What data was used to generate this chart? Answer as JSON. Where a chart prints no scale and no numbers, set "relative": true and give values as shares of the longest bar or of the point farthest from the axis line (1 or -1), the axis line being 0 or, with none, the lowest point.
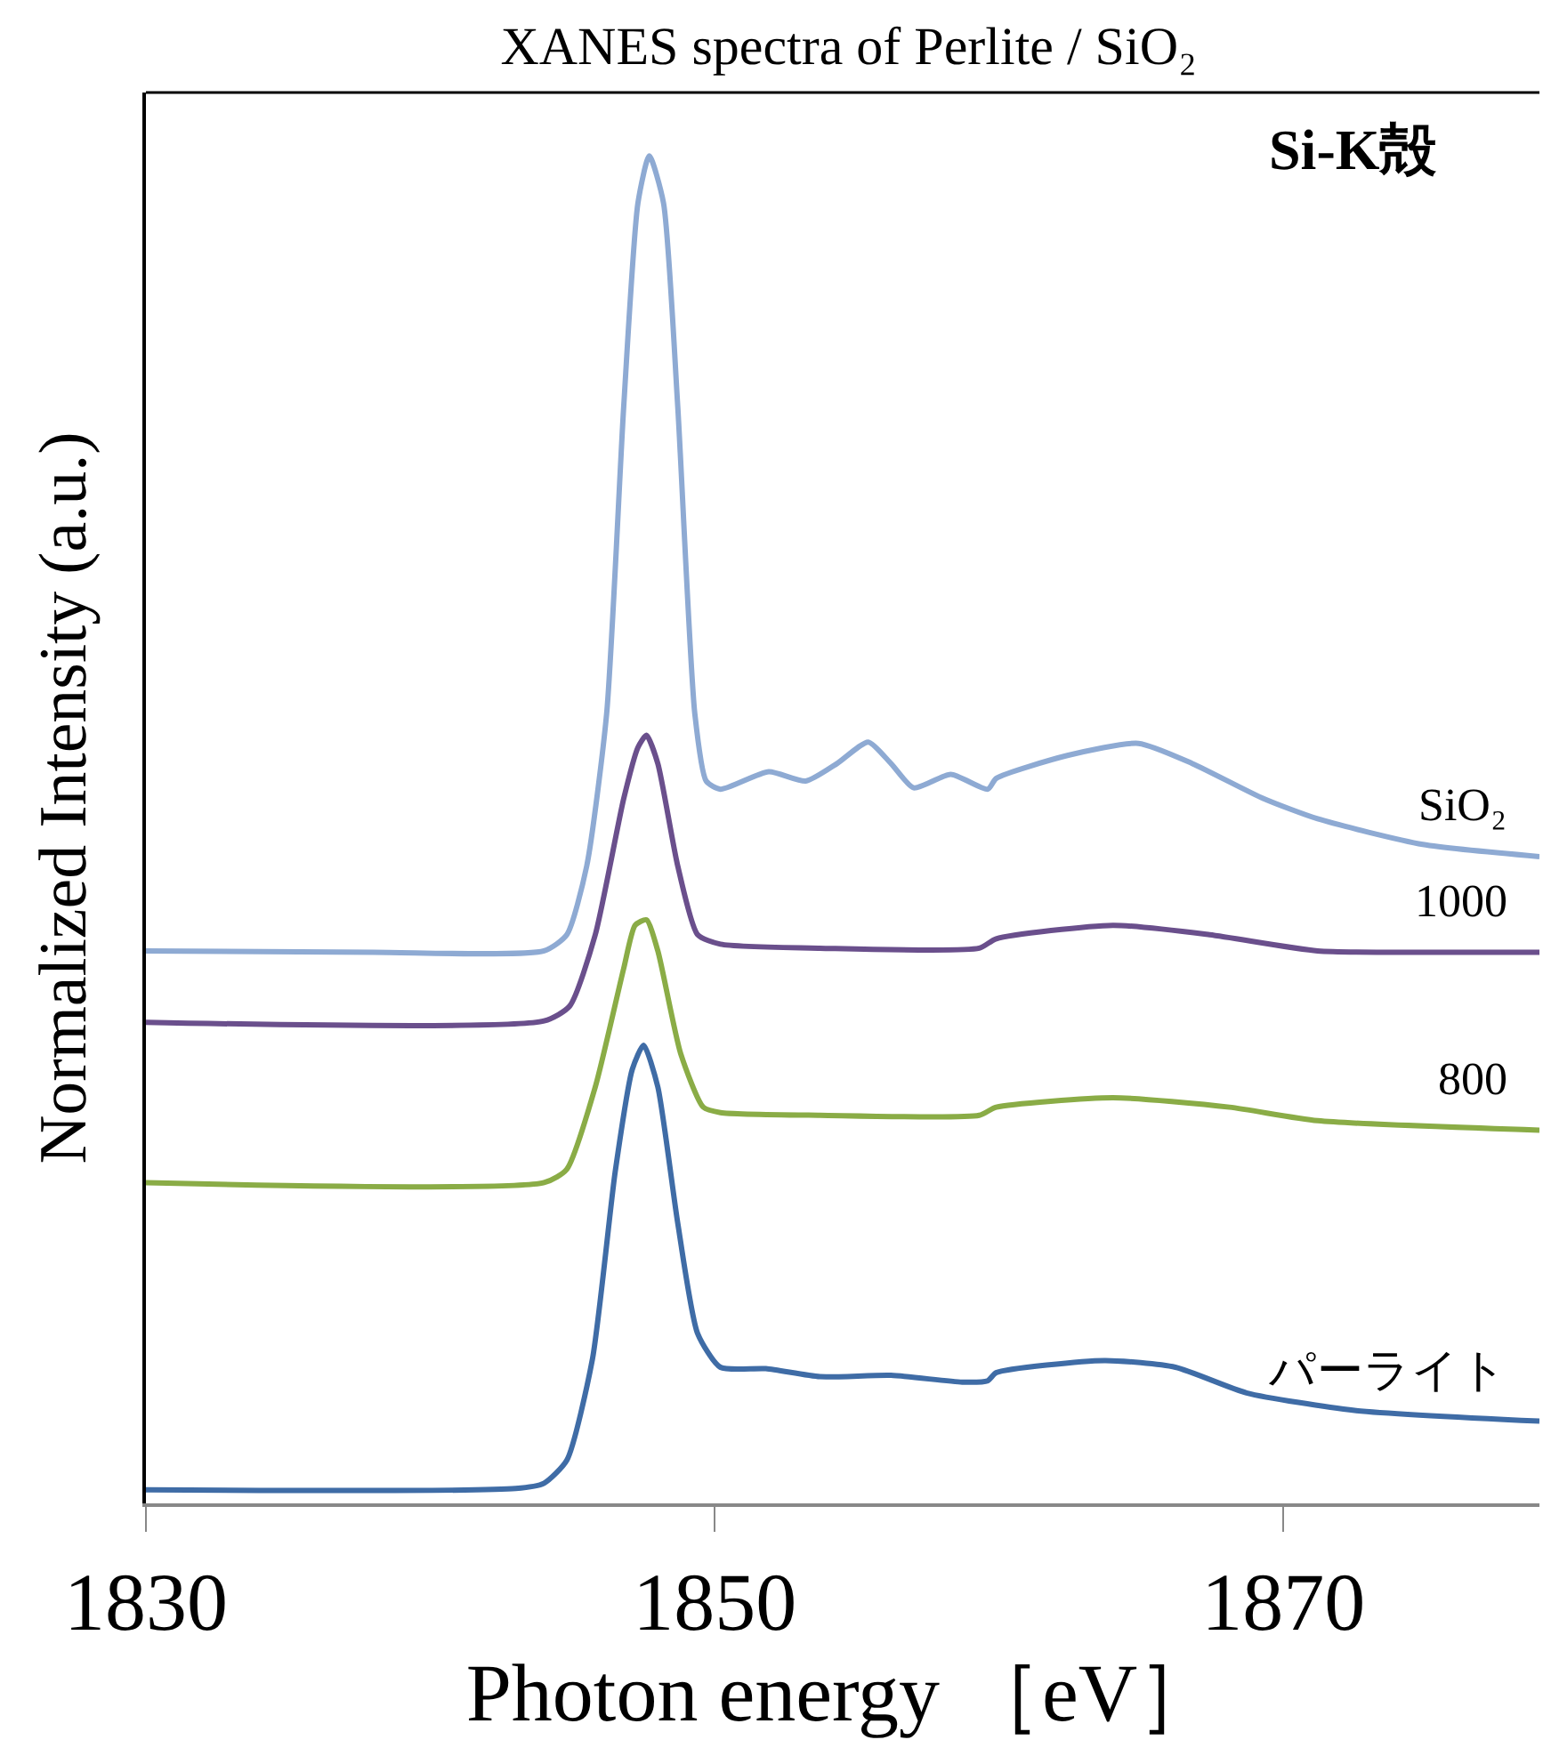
{
  "chart_data": {
    "type": "line",
    "title": "XANES spectra of Perlite / SiO₂",
    "xlabel": "Photon energy ［eV］",
    "ylabel": "Normalized Intensity (a.u.)",
    "relative": true,
    "xlim": [
      1830,
      1879
    ],
    "xticks": [
      1830,
      1850,
      1870
    ],
    "legend": false,
    "marker": "none",
    "line_style": "solid",
    "annotations": [
      "Si-K殻"
    ],
    "series": [
      {
        "name": "SiO₂",
        "color": "#8eaad3",
        "x": [
          1830,
          1838.0,
          1844.0,
          1844.8,
          1845.5,
          1846.2,
          1846.8,
          1847.3,
          1847.7,
          1848.2,
          1848.7,
          1849.3,
          1849.7,
          1850.2,
          1851.9,
          1853.2,
          1854.3,
          1855.4,
          1856.2,
          1857.0,
          1858.3,
          1859.6,
          1859.9,
          1862.4,
          1864.9,
          1866.8,
          1869.3,
          1871.2,
          1874.9,
          1879
        ],
        "values": [
          0.41,
          0.409,
          0.41,
          0.422,
          0.473,
          0.586,
          0.814,
          0.965,
          1.0,
          0.965,
          0.814,
          0.586,
          0.536,
          0.53,
          0.543,
          0.536,
          0.549,
          0.565,
          0.549,
          0.531,
          0.541,
          0.53,
          0.538,
          0.555,
          0.564,
          0.549,
          0.523,
          0.508,
          0.489,
          0.48
        ]
      },
      {
        "name": "1000",
        "color": "#6a4f8c",
        "x": [
          1830,
          1844.0,
          1844.9,
          1845.8,
          1846.8,
          1847.3,
          1847.6,
          1848.0,
          1848.7,
          1849.4,
          1850.2,
          1853.7,
          1859.3,
          1859.9,
          1864.0,
          1867.4,
          1871.2,
          1874.9,
          1879
        ],
        "values": [
          0.357,
          0.358,
          0.369,
          0.422,
          0.523,
          0.561,
          0.57,
          0.549,
          0.473,
          0.422,
          0.415,
          0.412,
          0.412,
          0.419,
          0.429,
          0.422,
          0.41,
          0.409,
          0.409
        ]
      },
      {
        "name": "800",
        "color": "#8aac46",
        "x": [
          1830,
          1844.0,
          1844.8,
          1845.8,
          1846.8,
          1847.2,
          1847.6,
          1848.0,
          1848.8,
          1849.6,
          1850.2,
          1853.7,
          1859.3,
          1859.9,
          1864.0,
          1868.1,
          1871.2,
          1879
        ],
        "values": [
          0.238,
          0.238,
          0.248,
          0.309,
          0.397,
          0.429,
          0.433,
          0.41,
          0.334,
          0.294,
          0.29,
          0.288,
          0.288,
          0.294,
          0.301,
          0.294,
          0.284,
          0.277
        ]
      },
      {
        "name": "パーライト",
        "color": "#3f6ca6",
        "x": [
          1830,
          1843.0,
          1844.0,
          1844.8,
          1845.7,
          1846.5,
          1847.1,
          1847.5,
          1848.0,
          1848.7,
          1849.4,
          1850.2,
          1851.8,
          1853.7,
          1856.2,
          1858.7,
          1859.6,
          1859.9,
          1863.7,
          1866.2,
          1868.7,
          1872.5,
          1879
        ],
        "values": [
          0.01,
          0.011,
          0.015,
          0.032,
          0.107,
          0.246,
          0.322,
          0.34,
          0.309,
          0.208,
          0.126,
          0.101,
          0.1,
          0.094,
          0.095,
          0.09,
          0.091,
          0.097,
          0.106,
          0.101,
          0.082,
          0.069,
          0.061
        ]
      }
    ]
  }
}
